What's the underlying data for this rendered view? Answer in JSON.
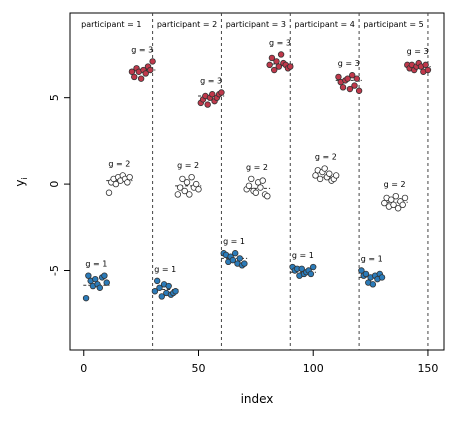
{
  "chart_data": {
    "type": "scatter",
    "title": "",
    "xlabel": "index",
    "ylabel": "y",
    "ylabel_subscript": "i",
    "xlim": [
      -6,
      157
    ],
    "ylim": [
      -9.6,
      9.9
    ],
    "xticks": [
      0,
      50,
      100,
      150
    ],
    "yticks": [
      -5,
      0,
      5
    ],
    "grid": false,
    "legend": "none",
    "colors": {
      "g1": "#2b7bb9",
      "g2": "#ffffff",
      "g3": "#c0384b",
      "edge": "#333333",
      "separator": "#444444",
      "mean_line": "#333333"
    },
    "panel_separators": [
      30,
      60,
      90,
      120,
      150
    ],
    "participants": [
      {
        "label": "participant = 1",
        "groups": [
          {
            "label": "g = 1",
            "group": "g1",
            "mean": -5.85,
            "x": [
              1,
              2,
              3,
              4,
              5,
              6,
              7,
              8,
              9,
              10
            ],
            "y": [
              -6.6,
              -5.3,
              -5.6,
              -5.9,
              -5.5,
              -5.8,
              -6.0,
              -5.4,
              -5.3,
              -5.7
            ]
          },
          {
            "label": "g = 2",
            "group": "g2",
            "mean": 0.2,
            "x": [
              11,
              12,
              13,
              14,
              15,
              16,
              17,
              18,
              19,
              20
            ],
            "y": [
              -0.5,
              0.1,
              0.3,
              0.0,
              0.4,
              0.2,
              0.5,
              0.3,
              0.1,
              0.4
            ]
          },
          {
            "label": "g = 3",
            "group": "g3",
            "mean": 6.6,
            "x": [
              21,
              22,
              23,
              24,
              25,
              26,
              27,
              28,
              29,
              30
            ],
            "y": [
              6.5,
              6.2,
              6.7,
              6.5,
              6.1,
              6.6,
              6.4,
              6.8,
              6.6,
              7.1
            ]
          }
        ]
      },
      {
        "label": "participant = 2",
        "groups": [
          {
            "label": "g = 1",
            "group": "g1",
            "mean": -6.1,
            "x": [
              31,
              32,
              33,
              34,
              35,
              36,
              37,
              38,
              39,
              40
            ],
            "y": [
              -6.2,
              -5.6,
              -6.0,
              -6.5,
              -5.8,
              -6.3,
              -5.9,
              -6.4,
              -6.3,
              -6.2
            ]
          },
          {
            "label": "g = 2",
            "group": "g2",
            "mean": -0.1,
            "x": [
              41,
              42,
              43,
              44,
              45,
              46,
              47,
              48,
              49,
              50
            ],
            "y": [
              -0.6,
              -0.2,
              0.3,
              -0.4,
              0.1,
              -0.6,
              0.4,
              -0.2,
              0.0,
              -0.3
            ]
          },
          {
            "label": "g = 3",
            "group": "g3",
            "mean": 5.1,
            "x": [
              51,
              52,
              53,
              54,
              55,
              56,
              57,
              58,
              59,
              60
            ],
            "y": [
              4.7,
              4.9,
              5.1,
              4.6,
              5.0,
              5.2,
              4.8,
              5.0,
              5.2,
              5.3
            ]
          }
        ]
      },
      {
        "label": "participant = 3",
        "groups": [
          {
            "label": "g = 1",
            "group": "g1",
            "mean": -4.3,
            "x": [
              61,
              62,
              63,
              64,
              65,
              66,
              67,
              68,
              69,
              70
            ],
            "y": [
              -4.0,
              -4.1,
              -4.5,
              -4.2,
              -4.4,
              -4.0,
              -4.6,
              -4.3,
              -4.7,
              -4.6
            ]
          },
          {
            "label": "g = 2",
            "group": "g2",
            "mean": -0.25,
            "x": [
              71,
              72,
              73,
              74,
              75,
              76,
              77,
              78,
              79,
              80
            ],
            "y": [
              -0.3,
              -0.1,
              0.3,
              -0.4,
              -0.5,
              0.1,
              -0.2,
              0.2,
              -0.6,
              -0.7
            ]
          },
          {
            "label": "g = 3",
            "group": "g3",
            "mean": 6.95,
            "x": [
              81,
              82,
              83,
              84,
              85,
              86,
              87,
              88,
              89,
              90
            ],
            "y": [
              6.9,
              7.3,
              6.6,
              7.1,
              6.8,
              7.5,
              7.0,
              6.9,
              6.7,
              6.8
            ]
          }
        ]
      },
      {
        "label": "participant = 4",
        "groups": [
          {
            "label": "g = 1",
            "group": "g1",
            "mean": -5.1,
            "x": [
              91,
              92,
              93,
              94,
              95,
              96,
              97,
              98,
              99,
              100
            ],
            "y": [
              -4.8,
              -5.0,
              -4.9,
              -5.3,
              -4.9,
              -5.2,
              -5.1,
              -5.0,
              -5.2,
              -4.8
            ]
          },
          {
            "label": "g = 2",
            "group": "g2",
            "mean": 0.4,
            "x": [
              101,
              102,
              103,
              104,
              105,
              106,
              107,
              108,
              109,
              110
            ],
            "y": [
              0.5,
              0.8,
              0.3,
              0.7,
              0.9,
              0.4,
              0.6,
              0.2,
              0.3,
              0.5
            ]
          },
          {
            "label": "g = 3",
            "group": "g3",
            "mean": 6.0,
            "x": [
              111,
              112,
              113,
              114,
              115,
              116,
              117,
              118,
              119,
              120
            ],
            "y": [
              6.2,
              5.9,
              5.6,
              6.0,
              6.1,
              5.5,
              6.3,
              5.7,
              6.1,
              5.4
            ]
          }
        ]
      },
      {
        "label": "participant = 5",
        "groups": [
          {
            "label": "g = 1",
            "group": "g1",
            "mean": -5.4,
            "x": [
              121,
              122,
              123,
              124,
              125,
              126,
              127,
              128,
              129,
              130
            ],
            "y": [
              -5.0,
              -5.3,
              -5.2,
              -5.7,
              -5.4,
              -5.8,
              -5.3,
              -5.5,
              -5.2,
              -5.4
            ]
          },
          {
            "label": "g = 2",
            "group": "g2",
            "mean": -1.05,
            "x": [
              131,
              132,
              133,
              134,
              135,
              136,
              137,
              138,
              139,
              140
            ],
            "y": [
              -1.1,
              -0.8,
              -1.3,
              -0.9,
              -1.2,
              -0.7,
              -1.4,
              -1.0,
              -1.2,
              -0.8
            ]
          },
          {
            "label": "g = 3",
            "group": "g3",
            "mean": 6.8,
            "x": [
              141,
              142,
              143,
              144,
              145,
              146,
              147,
              148,
              149,
              150
            ],
            "y": [
              6.9,
              6.7,
              6.9,
              6.6,
              6.8,
              7.0,
              6.8,
              6.5,
              6.9,
              6.6
            ]
          }
        ]
      }
    ]
  }
}
